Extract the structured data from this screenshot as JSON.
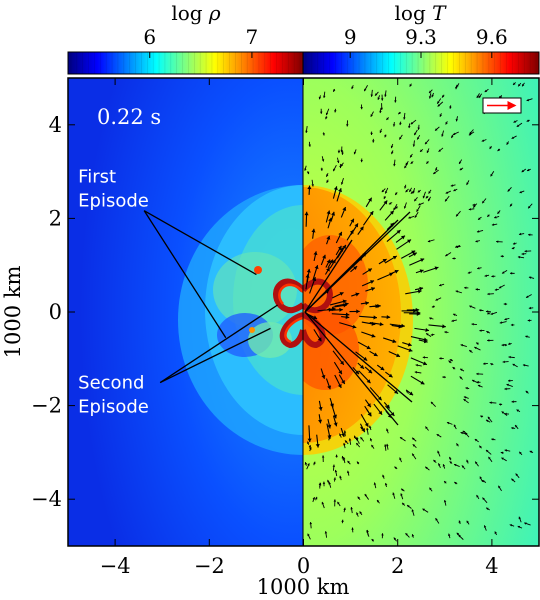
{
  "chart_data": {
    "type": "heatmap",
    "timestamp": "0.22 s",
    "xlabel": "1000 km",
    "ylabel": "1000 km",
    "xlim": [
      -5,
      5
    ],
    "ylim": [
      -5,
      5
    ],
    "xticks": [
      -4,
      -2,
      0,
      2,
      4
    ],
    "yticks": [
      -4,
      -2,
      0,
      2,
      4
    ],
    "xtick_labels": [
      "−4",
      "−2",
      "0",
      "2",
      "4"
    ],
    "ytick_labels": [
      "−4",
      "−2",
      "0",
      "2",
      "4"
    ],
    "left_panel": {
      "quantity": "density",
      "colorbar_label_prefix": "log ",
      "colorbar_label_var": "ρ",
      "colorbar_range": [
        5.2,
        7.5
      ],
      "colorbar_ticks": [
        6,
        7
      ],
      "colorbar_tick_labels": [
        "6",
        "7"
      ]
    },
    "right_panel": {
      "quantity": "temperature",
      "colorbar_label_prefix": "log ",
      "colorbar_label_var": "T",
      "colorbar_range": [
        8.8,
        9.8
      ],
      "colorbar_ticks": [
        9,
        9.3,
        9.6
      ],
      "colorbar_tick_labels": [
        "9",
        "9.3",
        "9.6"
      ],
      "velocity_vectors": true
    },
    "annotations": [
      {
        "line1": "First",
        "line2": "Episode",
        "label_x": -3.85,
        "label_y": 2.55,
        "targets": [
          [
            -1.0,
            0.8
          ],
          [
            -1.65,
            -0.55
          ]
        ]
      },
      {
        "line1": "Second",
        "line2": "Episode",
        "label_x": -3.85,
        "label_y": -1.85,
        "targets": [
          [
            -0.55,
            0.15
          ],
          [
            -0.7,
            -0.35
          ]
        ]
      }
    ],
    "colormap": [
      "#00007f",
      "#0000ff",
      "#007fff",
      "#00ffff",
      "#7fff7f",
      "#ffff00",
      "#ff7f00",
      "#ff0000",
      "#7f0000"
    ]
  }
}
